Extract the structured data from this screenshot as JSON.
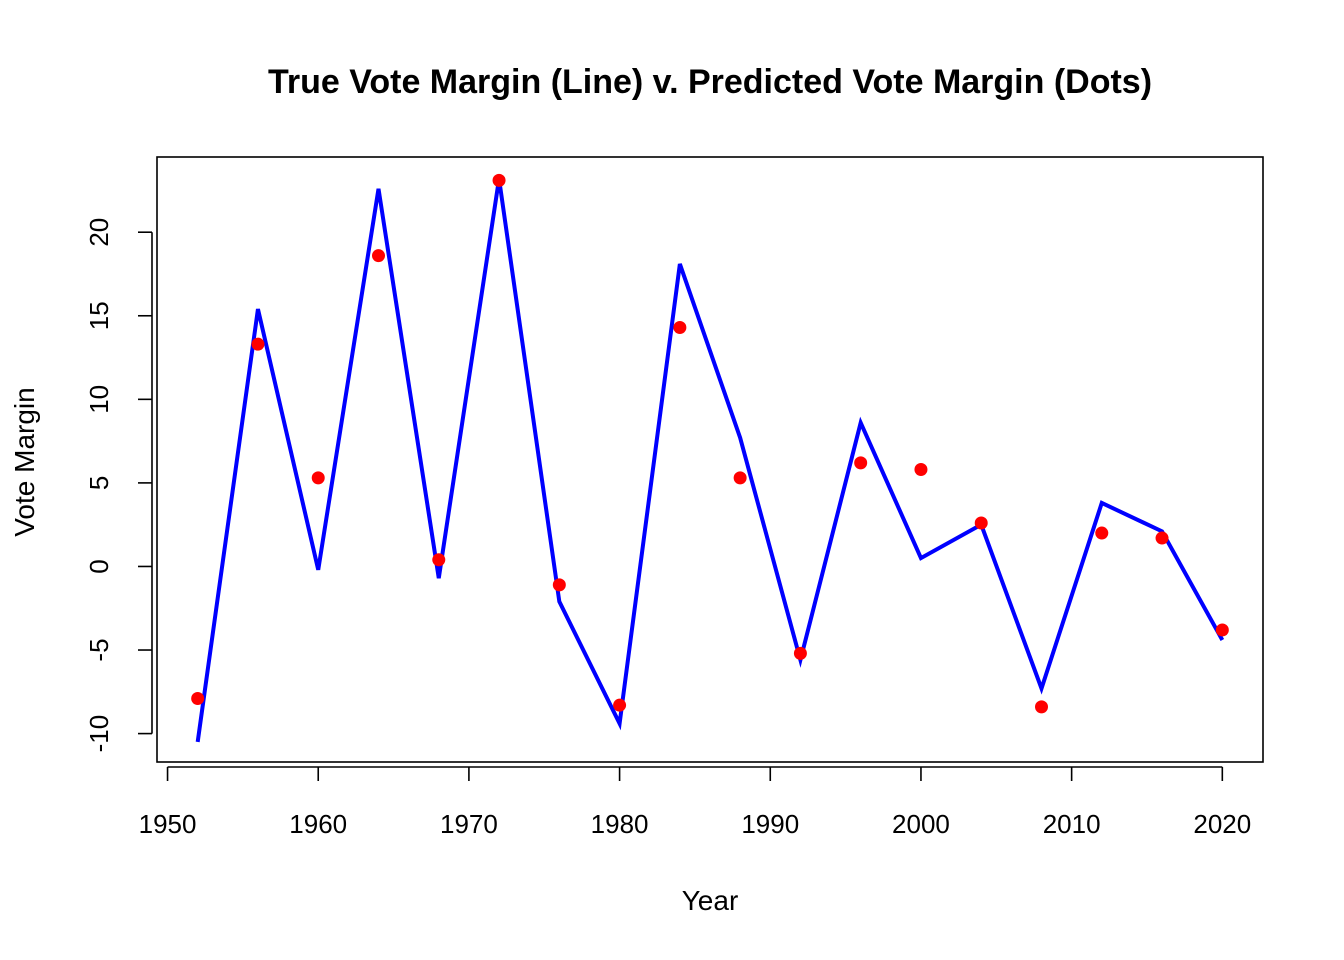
{
  "chart_data": {
    "type": "line",
    "title": "True Vote Margin (Line) v. Predicted Vote Margin (Dots)",
    "xlabel": "Year",
    "ylabel": "Vote Margin",
    "xlim": [
      1949.3,
      2022.7
    ],
    "ylim": [
      -11.7,
      24.5
    ],
    "x_ticks": [
      1950,
      1960,
      1970,
      1980,
      1990,
      2000,
      2010,
      2020
    ],
    "y_ticks": [
      -10,
      -5,
      0,
      5,
      10,
      15,
      20
    ],
    "x_tick_labels": [
      "1950",
      "1960",
      "1970",
      "1980",
      "1990",
      "2000",
      "2010",
      "2020"
    ],
    "y_tick_labels": [
      "-10",
      "-5",
      "0",
      "5",
      "10",
      "15",
      "20"
    ],
    "grid": false,
    "x": [
      1952,
      1956,
      1960,
      1964,
      1968,
      1972,
      1976,
      1980,
      1984,
      1988,
      1992,
      1996,
      2000,
      2004,
      2008,
      2012,
      2016,
      2020
    ],
    "series": [
      {
        "kind": "line",
        "color": "#0000ff",
        "values": [
          -10.5,
          15.4,
          -0.2,
          22.6,
          -0.7,
          23.2,
          -2.1,
          -9.4,
          18.1,
          7.7,
          -5.6,
          8.6,
          0.5,
          2.5,
          -7.3,
          3.8,
          2.1,
          -4.4
        ]
      },
      {
        "kind": "points",
        "color": "#ff0000",
        "values": [
          -7.9,
          13.3,
          5.3,
          18.6,
          0.4,
          23.1,
          -1.1,
          -8.3,
          14.3,
          5.3,
          -5.2,
          6.2,
          5.8,
          2.6,
          -8.4,
          2.0,
          1.7,
          -3.8
        ]
      }
    ]
  }
}
